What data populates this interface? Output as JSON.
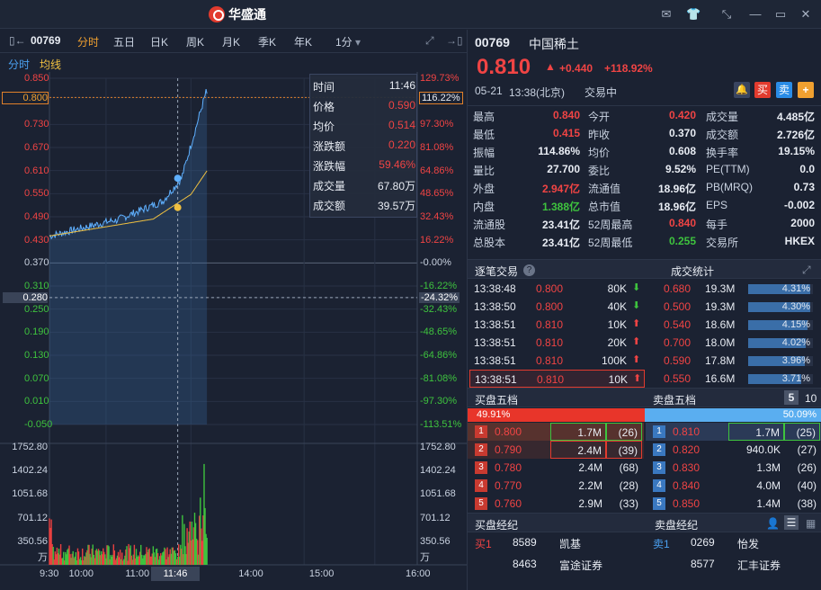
{
  "app": {
    "logo_text": "华盛通"
  },
  "toolbar": {
    "code": "00769",
    "periods": [
      "分时",
      "五日",
      "日K",
      "周K",
      "月K",
      "季K",
      "年K",
      "1分"
    ]
  },
  "subtabs": {
    "a": "分时",
    "b": "均线"
  },
  "price_axis": [
    "0.850",
    "0.800",
    "0.730",
    "0.670",
    "0.610",
    "0.550",
    "0.490",
    "0.430",
    "0.370",
    "0.310",
    "0.280",
    "0.250",
    "0.190",
    "0.130",
    "0.070",
    "0.010",
    "-0.050"
  ],
  "pct_axis": [
    "129.73%",
    "116.22%",
    "97.30%",
    "81.08%",
    "64.86%",
    "48.65%",
    "32.43%",
    "16.22%",
    "-0.00%",
    "-16.22%",
    "-24.32%",
    "-32.43%",
    "-48.65%",
    "-64.86%",
    "-81.08%",
    "-97.30%",
    "-113.51%"
  ],
  "vol_axis": [
    "1752.80",
    "1402.24",
    "1051.68",
    "701.12",
    "350.56",
    "万"
  ],
  "time_axis": [
    "9:30",
    "10:00",
    "11:00",
    "11:46",
    "14:00",
    "15:00",
    "16:00"
  ],
  "tooltip": {
    "rows": [
      {
        "k": "时间",
        "v": "11:46"
      },
      {
        "k": "价格",
        "v": "0.590"
      },
      {
        "k": "均价",
        "v": "0.514"
      },
      {
        "k": "涨跌额",
        "v": "0.220"
      },
      {
        "k": "涨跌幅",
        "v": "59.46%"
      },
      {
        "k": "成交量",
        "v": "67.80万"
      },
      {
        "k": "成交额",
        "v": "39.57万"
      }
    ]
  },
  "stock": {
    "code": "00769",
    "name": "中国稀土",
    "price": "0.810",
    "change": "+0.440",
    "change_pct": "+118.92%",
    "date": "05-21",
    "time": "13:38(北京)",
    "status": "交易中",
    "buy": "买",
    "sell": "卖"
  },
  "quote_table": [
    [
      {
        "k": "最高",
        "v": "0.840",
        "c": "red"
      },
      {
        "k": "今开",
        "v": "0.420",
        "c": "red"
      },
      {
        "k": "成交量",
        "v": "4.485亿",
        "c": "white"
      }
    ],
    [
      {
        "k": "最低",
        "v": "0.415",
        "c": "red"
      },
      {
        "k": "昨收",
        "v": "0.370",
        "c": "white"
      },
      {
        "k": "成交额",
        "v": "2.726亿",
        "c": "white"
      }
    ],
    [
      {
        "k": "振幅",
        "v": "114.86%",
        "c": "white"
      },
      {
        "k": "均价",
        "v": "0.608",
        "c": "white"
      },
      {
        "k": "换手率",
        "v": "19.15%",
        "c": "white"
      }
    ],
    [
      {
        "k": "量比",
        "v": "27.700",
        "c": "white"
      },
      {
        "k": "委比",
        "v": "9.52%",
        "c": "white"
      },
      {
        "k": "PE(TTM)",
        "v": "0.0",
        "c": "white"
      }
    ],
    [
      {
        "k": "外盘",
        "v": "2.947亿",
        "c": "red"
      },
      {
        "k": "流通值",
        "v": "18.96亿",
        "c": "white"
      },
      {
        "k": "PB(MRQ)",
        "v": "0.73",
        "c": "white"
      }
    ],
    [
      {
        "k": "内盘",
        "v": "1.388亿",
        "c": "green"
      },
      {
        "k": "总市值",
        "v": "18.96亿",
        "c": "white"
      },
      {
        "k": "EPS",
        "v": "-0.002",
        "c": "white"
      }
    ],
    [
      {
        "k": "流通股",
        "v": "23.41亿",
        "c": "white"
      },
      {
        "k": "52周最高",
        "v": "0.840",
        "c": "red"
      },
      {
        "k": "每手",
        "v": "2000",
        "c": "white"
      }
    ],
    [
      {
        "k": "总股本",
        "v": "23.41亿",
        "c": "white"
      },
      {
        "k": "52周最低",
        "v": "0.255",
        "c": "green"
      },
      {
        "k": "交易所",
        "v": "HKEX",
        "c": "white"
      }
    ]
  ],
  "ticks_header": {
    "a": "逐笔交易",
    "b": "成交统计"
  },
  "ticks": [
    {
      "t": "13:38:48",
      "p": "0.800",
      "v": "80K",
      "dir": "down"
    },
    {
      "t": "13:38:50",
      "p": "0.800",
      "v": "40K",
      "dir": "down"
    },
    {
      "t": "13:38:51",
      "p": "0.810",
      "v": "10K",
      "dir": "up"
    },
    {
      "t": "13:38:51",
      "p": "0.810",
      "v": "20K",
      "dir": "up"
    },
    {
      "t": "13:38:51",
      "p": "0.810",
      "v": "100K",
      "dir": "up"
    },
    {
      "t": "13:38:51",
      "p": "0.810",
      "v": "10K",
      "dir": "up"
    }
  ],
  "stats": [
    {
      "p": "0.680",
      "v": "19.3M",
      "pct": "4.31%",
      "frac": 0.431
    },
    {
      "p": "0.500",
      "v": "19.3M",
      "pct": "4.30%",
      "frac": 0.43
    },
    {
      "p": "0.540",
      "v": "18.6M",
      "pct": "4.15%",
      "frac": 0.415
    },
    {
      "p": "0.700",
      "v": "18.0M",
      "pct": "4.02%",
      "frac": 0.402
    },
    {
      "p": "0.590",
      "v": "17.8M",
      "pct": "3.96%",
      "frac": 0.396
    },
    {
      "p": "0.550",
      "v": "16.6M",
      "pct": "3.71%",
      "frac": 0.371
    }
  ],
  "book_header": {
    "bid": "买盘五档",
    "ask": "卖盘五档",
    "n5": "5",
    "n10": "10",
    "bid_pct": "49.91%",
    "ask_pct": "50.09%",
    "bid_frac": 0.4991
  },
  "bids": [
    {
      "n": "1",
      "p": "0.800",
      "v": "1.7M",
      "c": "(26)"
    },
    {
      "n": "2",
      "p": "0.790",
      "v": "2.4M",
      "c": "(39)"
    },
    {
      "n": "3",
      "p": "0.780",
      "v": "2.4M",
      "c": "(68)"
    },
    {
      "n": "4",
      "p": "0.770",
      "v": "2.2M",
      "c": "(28)"
    },
    {
      "n": "5",
      "p": "0.760",
      "v": "2.9M",
      "c": "(33)"
    }
  ],
  "asks": [
    {
      "n": "1",
      "p": "0.810",
      "v": "1.7M",
      "c": "(25)"
    },
    {
      "n": "2",
      "p": "0.820",
      "v": "940.0K",
      "c": "(27)"
    },
    {
      "n": "3",
      "p": "0.830",
      "v": "1.3M",
      "c": "(26)"
    },
    {
      "n": "4",
      "p": "0.840",
      "v": "4.0M",
      "c": "(40)"
    },
    {
      "n": "5",
      "p": "0.850",
      "v": "1.4M",
      "c": "(38)"
    }
  ],
  "broker_header": {
    "bid": "买盘经纪",
    "ask": "卖盘经纪"
  },
  "brokers_bid": [
    {
      "lvl": "买1",
      "id": "8589",
      "name": "凯基"
    },
    {
      "lvl": "",
      "id": "8463",
      "name": "富途证券"
    }
  ],
  "brokers_ask": [
    {
      "lvl": "卖1",
      "id": "0269",
      "name": "怡发"
    },
    {
      "lvl": "",
      "id": "8577",
      "name": "汇丰证券"
    }
  ]
}
